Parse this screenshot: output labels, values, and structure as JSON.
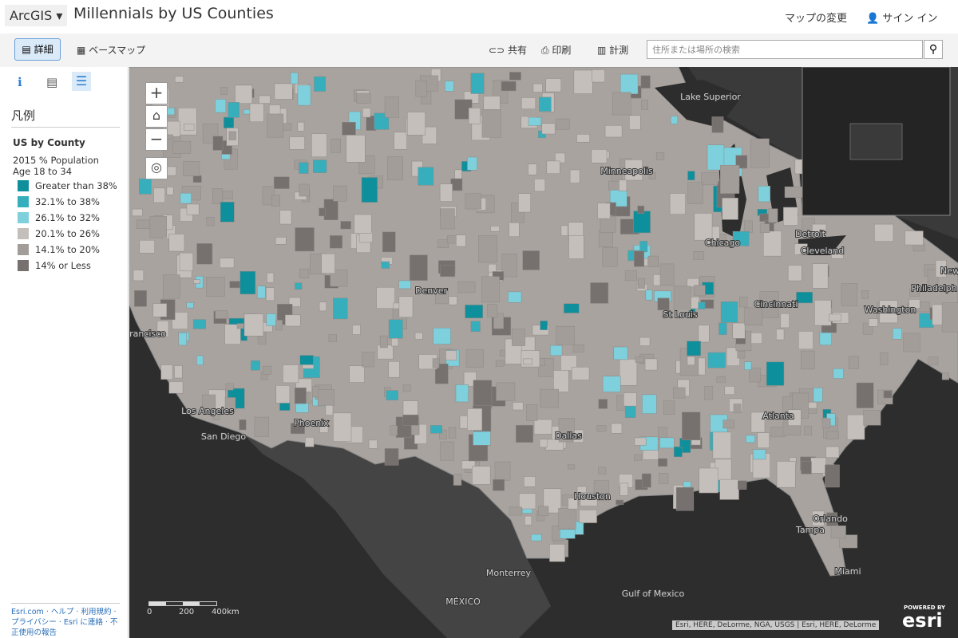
{
  "header": {
    "brand": "ArcGIS",
    "title": "Millennials by US Counties",
    "change_map": "マップの変更",
    "sign_in": "サイン イン"
  },
  "toolbar": {
    "details": "詳細",
    "basemap": "ベースマップ",
    "share": "共有",
    "print": "印刷",
    "measure": "計測",
    "search_placeholder": "住所または場所の検索"
  },
  "panel": {
    "heading": "凡例",
    "layer": "US by County",
    "field": "2015 % Population Age 18 to 34",
    "legend": [
      {
        "label": "Greater than 38%",
        "color": "#0e8f9c"
      },
      {
        "label": "32.1% to 38%",
        "color": "#36aebc"
      },
      {
        "label": "26.1% to 32%",
        "color": "#7dd0dc"
      },
      {
        "label": "20.1% to 26%",
        "color": "#c4bfbb"
      },
      {
        "label": "14.1% to 20%",
        "color": "#a29d99"
      },
      {
        "label": "14% or Less",
        "color": "#76716e"
      }
    ],
    "footer": [
      "Esri.com",
      "ヘルプ",
      "利用規約",
      "プライバシー",
      "Esri に連絡",
      "不正使用の報告"
    ]
  },
  "map": {
    "labels": [
      "Lake Superior",
      "Minneapolis",
      "Chicago",
      "Detroit",
      "Cleveland",
      "Denver",
      "St Louis",
      "Cincinnati",
      "Washington",
      "Philadelph",
      "New",
      "rancisco",
      "Los Angeles",
      "San Diego",
      "Phoenix",
      "Dallas",
      "Atlanta",
      "Houston",
      "Orlando",
      "Tampa",
      "Miami",
      "Monterrey",
      "MÉXICO",
      "Gulf of Mexico"
    ],
    "zoom_in": "+",
    "zoom_out": "−",
    "scale": [
      "0",
      "200",
      "400km"
    ],
    "attribution": "Esri, HERE, DeLorme, NGA, USGS | Esri, HERE, DeLorme",
    "powered": "POWERED BY",
    "esri": "esri"
  }
}
